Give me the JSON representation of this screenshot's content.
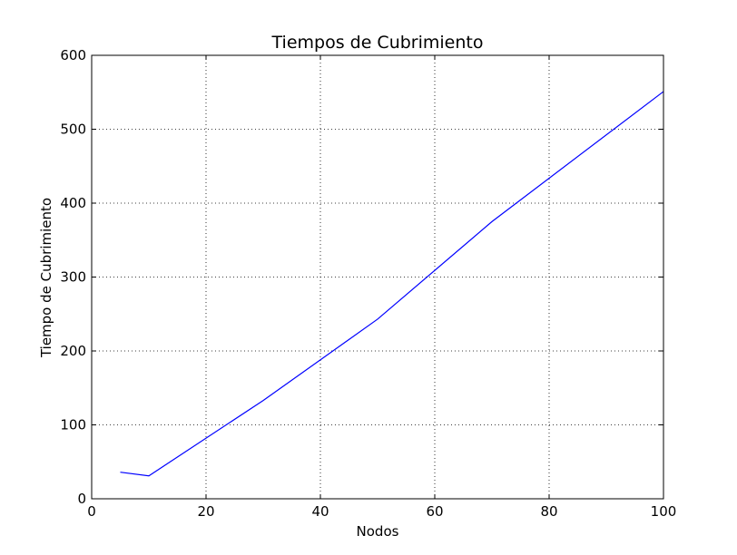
{
  "chart_data": {
    "type": "line",
    "title": "Tiempos de Cubrimiento",
    "xlabel": "Nodos",
    "ylabel": "Tiempo de Cubrimiento",
    "xlim": [
      0,
      100
    ],
    "ylim": [
      0,
      600
    ],
    "xticks": [
      0,
      20,
      40,
      60,
      80,
      100
    ],
    "yticks": [
      0,
      100,
      200,
      300,
      400,
      500,
      600
    ],
    "grid": true,
    "series": [
      {
        "color": "#0000ff",
        "x": [
          5,
          10,
          30,
          50,
          70,
          100
        ],
        "y": [
          36,
          31,
          133,
          243,
          375,
          551
        ]
      }
    ]
  }
}
